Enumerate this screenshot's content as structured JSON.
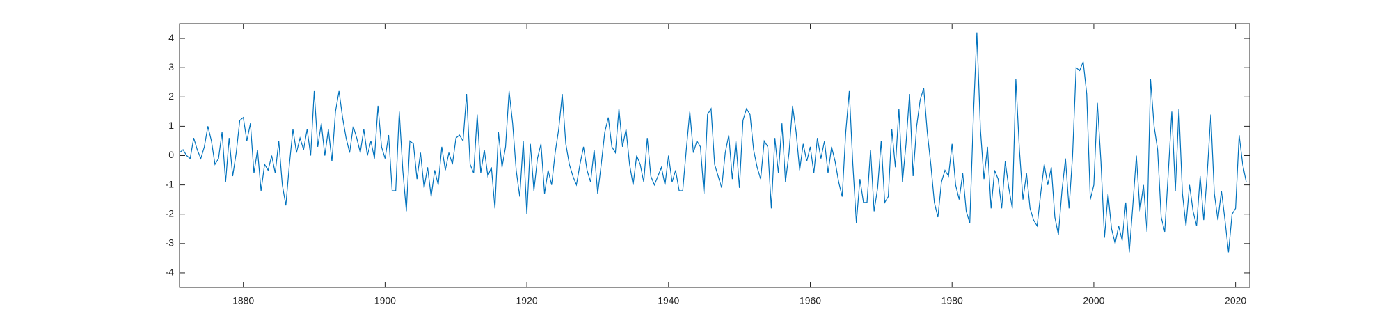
{
  "chart_data": {
    "type": "line",
    "x": [
      1871,
      1871.5,
      1872,
      1872.5,
      1873,
      1873.5,
      1874,
      1874.5,
      1875,
      1875.5,
      1876,
      1876.5,
      1877,
      1877.5,
      1878,
      1878.5,
      1879,
      1879.5,
      1880,
      1880.5,
      1881,
      1881.5,
      1882,
      1882.5,
      1883,
      1883.5,
      1884,
      1884.5,
      1885,
      1885.5,
      1886,
      1886.5,
      1887,
      1887.5,
      1888,
      1888.5,
      1889,
      1889.5,
      1890,
      1890.5,
      1891,
      1891.5,
      1892,
      1892.5,
      1893,
      1893.5,
      1894,
      1894.5,
      1895,
      1895.5,
      1896,
      1896.5,
      1897,
      1897.5,
      1898,
      1898.5,
      1899,
      1899.5,
      1900,
      1900.5,
      1901,
      1901.5,
      1902,
      1902.5,
      1903,
      1903.5,
      1904,
      1904.5,
      1905,
      1905.5,
      1906,
      1906.5,
      1907,
      1907.5,
      1908,
      1908.5,
      1909,
      1909.5,
      1910,
      1910.5,
      1911,
      1911.5,
      1912,
      1912.5,
      1913,
      1913.5,
      1914,
      1914.5,
      1915,
      1915.5,
      1916,
      1916.5,
      1917,
      1917.5,
      1918,
      1918.5,
      1919,
      1919.5,
      1920,
      1920.5,
      1921,
      1921.5,
      1922,
      1922.5,
      1923,
      1923.5,
      1924,
      1924.5,
      1925,
      1925.5,
      1926,
      1926.5,
      1927,
      1927.5,
      1928,
      1928.5,
      1929,
      1929.5,
      1930,
      1930.5,
      1931,
      1931.5,
      1932,
      1932.5,
      1933,
      1933.5,
      1934,
      1934.5,
      1935,
      1935.5,
      1936,
      1936.5,
      1937,
      1937.5,
      1938,
      1938.5,
      1939,
      1939.5,
      1940,
      1940.5,
      1941,
      1941.5,
      1942,
      1942.5,
      1943,
      1943.5,
      1944,
      1944.5,
      1945,
      1945.5,
      1946,
      1946.5,
      1947,
      1947.5,
      1948,
      1948.5,
      1949,
      1949.5,
      1950,
      1950.5,
      1951,
      1951.5,
      1952,
      1952.5,
      1953,
      1953.5,
      1954,
      1954.5,
      1955,
      1955.5,
      1956,
      1956.5,
      1957,
      1957.5,
      1958,
      1958.5,
      1959,
      1959.5,
      1960,
      1960.5,
      1961,
      1961.5,
      1962,
      1962.5,
      1963,
      1963.5,
      1964,
      1964.5,
      1965,
      1965.5,
      1966,
      1966.5,
      1967,
      1967.5,
      1968,
      1968.5,
      1969,
      1969.5,
      1970,
      1970.5,
      1971,
      1971.5,
      1972,
      1972.5,
      1973,
      1973.5,
      1974,
      1974.5,
      1975,
      1975.5,
      1976,
      1976.5,
      1977,
      1977.5,
      1978,
      1978.5,
      1979,
      1979.5,
      1980,
      1980.5,
      1981,
      1981.5,
      1982,
      1982.5,
      1983,
      1983.5,
      1984,
      1984.5,
      1985,
      1985.5,
      1986,
      1986.5,
      1987,
      1987.5,
      1988,
      1988.5,
      1989,
      1989.5,
      1990,
      1990.5,
      1991,
      1991.5,
      1992,
      1992.5,
      1993,
      1993.5,
      1994,
      1994.5,
      1995,
      1995.5,
      1996,
      1996.5,
      1997,
      1997.5,
      1998,
      1998.5,
      1999,
      1999.5,
      2000,
      2000.5,
      2001,
      2001.5,
      2002,
      2002.5,
      2003,
      2003.5,
      2004,
      2004.5,
      2005,
      2005.5,
      2006,
      2006.5,
      2007,
      2007.5,
      2008,
      2008.5,
      2009,
      2009.5,
      2010,
      2010.5,
      2011,
      2011.5,
      2012,
      2012.5,
      2013,
      2013.5,
      2014,
      2014.5,
      2015,
      2015.5,
      2016,
      2016.5,
      2017,
      2017.5,
      2018,
      2018.5,
      2019,
      2019.5,
      2020,
      2020.5,
      2021,
      2021.5
    ],
    "series": [
      {
        "color": "#0072bd",
        "values": [
          0.1,
          0.2,
          0.0,
          -0.1,
          0.6,
          0.2,
          -0.1,
          0.3,
          1.0,
          0.5,
          -0.3,
          -0.1,
          0.8,
          -0.9,
          0.6,
          -0.7,
          0.1,
          1.2,
          1.3,
          0.5,
          1.1,
          -0.6,
          0.2,
          -1.2,
          -0.3,
          -0.5,
          0.0,
          -0.6,
          0.5,
          -1.0,
          -1.7,
          -0.3,
          0.9,
          0.1,
          0.6,
          0.2,
          0.9,
          0.0,
          2.2,
          0.3,
          1.1,
          0.0,
          0.9,
          -0.2,
          1.5,
          2.2,
          1.3,
          0.6,
          0.1,
          1.0,
          0.6,
          0.1,
          0.9,
          0.0,
          0.5,
          -0.1,
          1.7,
          0.3,
          -0.1,
          0.7,
          -1.2,
          -1.2,
          1.5,
          -0.5,
          -1.9,
          0.5,
          0.4,
          -0.8,
          0.1,
          -1.1,
          -0.4,
          -1.4,
          -0.5,
          -1.0,
          0.3,
          -0.5,
          0.1,
          -0.3,
          0.6,
          0.7,
          0.5,
          2.1,
          -0.3,
          -0.6,
          1.4,
          -0.6,
          0.2,
          -0.7,
          -0.4,
          -1.8,
          0.8,
          -0.4,
          0.3,
          2.2,
          1.1,
          -0.5,
          -1.4,
          0.5,
          -2.0,
          0.4,
          -1.2,
          -0.1,
          0.4,
          -1.3,
          -0.5,
          -1.0,
          0.1,
          0.9,
          2.1,
          0.4,
          -0.3,
          -0.7,
          -1.0,
          -0.3,
          0.3,
          -0.5,
          -0.9,
          0.2,
          -1.3,
          -0.3,
          0.8,
          1.3,
          0.3,
          0.1,
          1.6,
          0.3,
          0.9,
          -0.3,
          -1.0,
          0.0,
          -0.3,
          -0.9,
          0.6,
          -0.7,
          -1.0,
          -0.7,
          -0.4,
          -1.0,
          0.0,
          -0.9,
          -0.5,
          -1.2,
          -1.2,
          0.2,
          1.5,
          0.1,
          0.5,
          0.3,
          -1.3,
          1.4,
          1.6,
          -0.3,
          -0.7,
          -1.1,
          0.1,
          0.7,
          -0.8,
          0.5,
          -1.1,
          1.2,
          1.6,
          1.4,
          0.2,
          -0.4,
          -0.8,
          0.5,
          0.3,
          -1.8,
          0.6,
          -0.6,
          1.1,
          -0.9,
          0.1,
          1.7,
          0.8,
          -0.5,
          0.4,
          -0.2,
          0.3,
          -0.6,
          0.6,
          -0.1,
          0.5,
          -0.6,
          0.3,
          -0.2,
          -0.9,
          -1.4,
          0.8,
          2.2,
          -0.3,
          -2.3,
          -0.8,
          -1.6,
          -1.6,
          0.2,
          -1.9,
          -1.1,
          0.5,
          -1.6,
          -1.4,
          0.9,
          -0.4,
          1.6,
          -0.9,
          0.4,
          2.1,
          -0.7,
          1.0,
          1.9,
          2.3,
          0.8,
          -0.3,
          -1.6,
          -2.1,
          -0.9,
          -0.5,
          -0.7,
          0.4,
          -1.0,
          -1.5,
          -0.6,
          -1.9,
          -2.3,
          1.3,
          4.2,
          0.9,
          -0.8,
          0.3,
          -1.8,
          -0.5,
          -0.8,
          -1.8,
          -0.2,
          -1.1,
          -1.8,
          2.6,
          0.2,
          -1.5,
          -0.6,
          -1.8,
          -2.2,
          -2.4,
          -1.3,
          -0.3,
          -1.0,
          -0.4,
          -2.1,
          -2.7,
          -1.2,
          -0.1,
          -1.8,
          0.0,
          3.0,
          2.9,
          3.2,
          2.1,
          -1.5,
          -1.0,
          1.8,
          -0.2,
          -2.8,
          -1.3,
          -2.5,
          -3.0,
          -2.4,
          -2.9,
          -1.6,
          -3.3,
          -1.7,
          0.0,
          -1.9,
          -1.0,
          -2.6,
          2.6,
          1.0,
          0.2,
          -2.1,
          -2.6,
          -0.6,
          1.5,
          -1.2,
          1.6,
          -1.3,
          -2.4,
          -1.0,
          -1.9,
          -2.4,
          -0.7,
          -2.2,
          -0.6,
          1.4,
          -1.3,
          -2.2,
          -1.2,
          -2.2,
          -3.3,
          -2.0,
          -1.8,
          0.7,
          -0.3,
          -0.9
        ]
      }
    ],
    "xlim": [
      1871,
      2022
    ],
    "xticks": [
      1880,
      1900,
      1920,
      1940,
      1960,
      1980,
      2000,
      2020
    ],
    "ylim": [
      -4.5,
      4.5
    ],
    "yticks": [
      -4,
      -3,
      -2,
      -1,
      0,
      1,
      2,
      3,
      4
    ],
    "grid": false
  }
}
